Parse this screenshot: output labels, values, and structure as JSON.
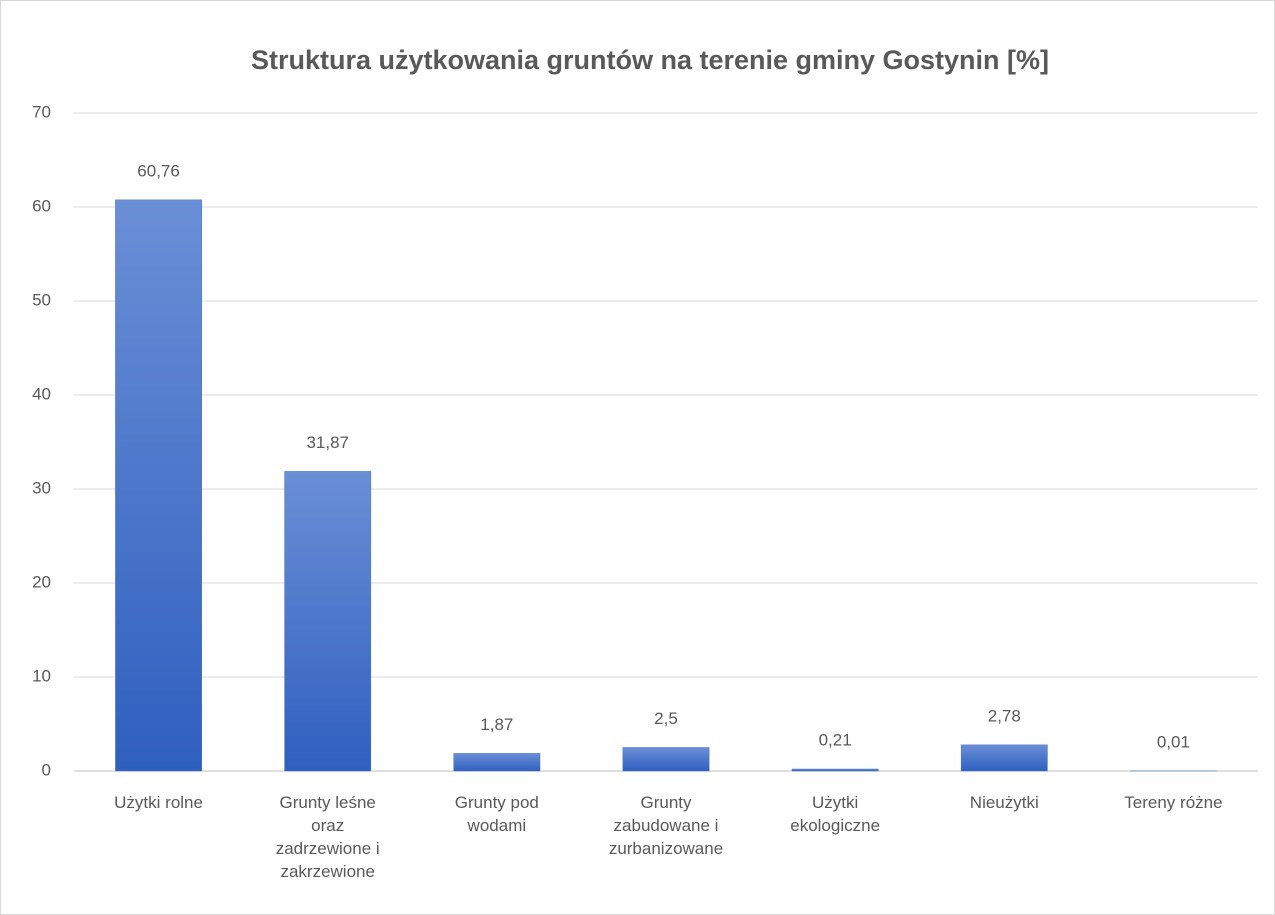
{
  "chart_data": {
    "type": "bar",
    "title": "Struktura użytkowania gruntów na terenie gminy Gostynin [%]",
    "categories": [
      "Użytki rolne",
      "Grunty leśne oraz zadrzewione i zakrzewione",
      "Grunty pod wodami",
      "Grunty zabudowane i zurbanizowane",
      "Użytki ekologiczne",
      "Nieużytki",
      "Tereny różne"
    ],
    "values": [
      60.76,
      31.87,
      1.87,
      2.5,
      0.21,
      2.78,
      0.01
    ],
    "value_labels": [
      "60,76",
      "31,87",
      "1,87",
      "2,5",
      "0,21",
      "2,78",
      "0,01"
    ],
    "color": "#4472c4",
    "ylim": [
      0,
      70
    ],
    "yticks": [
      0,
      10,
      20,
      30,
      40,
      50,
      60,
      70
    ],
    "grid": true
  }
}
